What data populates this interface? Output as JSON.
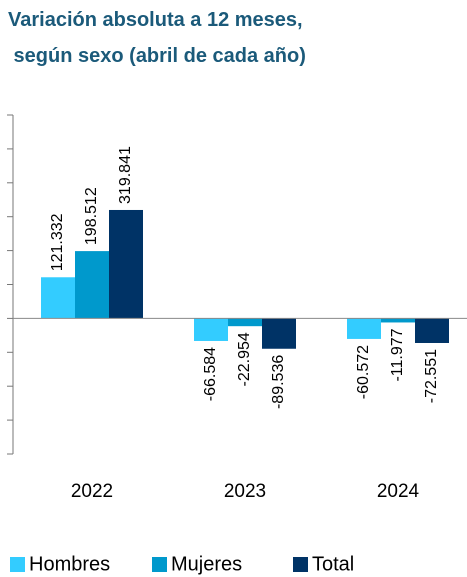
{
  "chart_data": {
    "type": "bar",
    "title": [
      "Variación absoluta a 12 meses,",
      " según sexo (abril de cada año)"
    ],
    "categories": [
      "2022",
      "2023",
      "2024"
    ],
    "series": [
      {
        "name": "Hombres",
        "color": "#33ccff",
        "values": [
          121332,
          -66584,
          -60572
        ],
        "value_labels": [
          "121.332",
          "-66.584",
          "-60.572"
        ]
      },
      {
        "name": "Mujeres",
        "color": "#0099cc",
        "values": [
          198512,
          -22954,
          -11977
        ],
        "value_labels": [
          "198.512",
          "-22.954",
          "-11.977"
        ]
      },
      {
        "name": "Total",
        "color": "#003366",
        "values": [
          319841,
          -89536,
          -72551
        ],
        "value_labels": [
          "319.841",
          "-89.536",
          "-72.551"
        ]
      }
    ],
    "ylim": [
      -400000,
      600000
    ],
    "yticks": [
      -400000,
      -300000,
      -200000,
      -100000,
      0,
      100000,
      200000,
      300000,
      400000,
      500000,
      600000
    ],
    "legend": "bottom"
  }
}
